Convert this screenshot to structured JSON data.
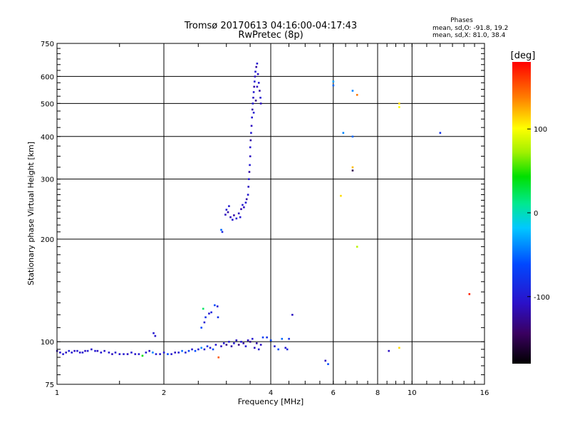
{
  "chart_data": {
    "type": "scatter",
    "title": "Tromsø 20170613 04:16:00-04:17:43",
    "subtitle": "RwPretec (8p)",
    "xlabel": "Frequency [MHz]",
    "ylabel": "Stationary phase Virtual Height [km]",
    "x_scale": "log",
    "y_scale": "log",
    "xlim": [
      1,
      16
    ],
    "ylim": [
      75,
      750
    ],
    "x_ticks": [
      1,
      2,
      4,
      6,
      8,
      10,
      16
    ],
    "x_tick_labels": [
      "1",
      "2",
      "4",
      "6",
      "8",
      "10",
      "16"
    ],
    "y_ticks": [
      75,
      100,
      200,
      300,
      400,
      500,
      600,
      750
    ],
    "y_tick_labels": [
      "75",
      "100",
      "200",
      "300",
      "400",
      "500",
      "600",
      "750"
    ],
    "grid": true,
    "phases_header": "Phases",
    "stats": [
      "mean, sd,O: -91.8, 19.2",
      "mean, sd,X: 81.0, 38.4"
    ],
    "colorbar": {
      "label": "[deg]",
      "range": [
        -180,
        180
      ],
      "tick_values": [
        100,
        0,
        -100
      ],
      "tick_labels": [
        "100",
        "0",
        "-100"
      ]
    },
    "series": [
      {
        "description_color": "phase",
        "points": [
          {
            "x": 1.0,
            "y": 94,
            "phase": -110
          },
          {
            "x": 1.02,
            "y": 93,
            "phase": -105
          },
          {
            "x": 1.04,
            "y": 92,
            "phase": -100
          },
          {
            "x": 1.06,
            "y": 93,
            "phase": -110
          },
          {
            "x": 1.08,
            "y": 94,
            "phase": -95
          },
          {
            "x": 1.1,
            "y": 93,
            "phase": -100
          },
          {
            "x": 1.12,
            "y": 94,
            "phase": -110
          },
          {
            "x": 1.14,
            "y": 94,
            "phase": -100
          },
          {
            "x": 1.16,
            "y": 93,
            "phase": -105
          },
          {
            "x": 1.18,
            "y": 93,
            "phase": -100
          },
          {
            "x": 1.2,
            "y": 94,
            "phase": -110
          },
          {
            "x": 1.22,
            "y": 94,
            "phase": -100
          },
          {
            "x": 1.25,
            "y": 95,
            "phase": -105
          },
          {
            "x": 1.28,
            "y": 94,
            "phase": -100
          },
          {
            "x": 1.3,
            "y": 94,
            "phase": -110
          },
          {
            "x": 1.33,
            "y": 93,
            "phase": -100
          },
          {
            "x": 1.36,
            "y": 94,
            "phase": -105
          },
          {
            "x": 1.4,
            "y": 93,
            "phase": -100
          },
          {
            "x": 1.43,
            "y": 92,
            "phase": -110
          },
          {
            "x": 1.46,
            "y": 93,
            "phase": -100
          },
          {
            "x": 1.5,
            "y": 92,
            "phase": -105
          },
          {
            "x": 1.54,
            "y": 92,
            "phase": -100
          },
          {
            "x": 1.58,
            "y": 92,
            "phase": -110
          },
          {
            "x": 1.62,
            "y": 93,
            "phase": -100
          },
          {
            "x": 1.66,
            "y": 92,
            "phase": -105
          },
          {
            "x": 1.7,
            "y": 92,
            "phase": -100
          },
          {
            "x": 1.74,
            "y": 91,
            "phase": 40
          },
          {
            "x": 1.78,
            "y": 93,
            "phase": -100
          },
          {
            "x": 1.82,
            "y": 94,
            "phase": -110
          },
          {
            "x": 1.86,
            "y": 93,
            "phase": -40
          },
          {
            "x": 1.9,
            "y": 92,
            "phase": -100
          },
          {
            "x": 1.95,
            "y": 92,
            "phase": -105
          },
          {
            "x": 2.0,
            "y": 93,
            "phase": -100
          },
          {
            "x": 2.05,
            "y": 92,
            "phase": -60
          },
          {
            "x": 2.1,
            "y": 92,
            "phase": -100
          },
          {
            "x": 2.15,
            "y": 93,
            "phase": -110
          },
          {
            "x": 2.2,
            "y": 93,
            "phase": -100
          },
          {
            "x": 2.25,
            "y": 94,
            "phase": -50
          },
          {
            "x": 2.3,
            "y": 93,
            "phase": -100
          },
          {
            "x": 2.35,
            "y": 94,
            "phase": -70
          },
          {
            "x": 2.4,
            "y": 95,
            "phase": -100
          },
          {
            "x": 2.45,
            "y": 94,
            "phase": -60
          },
          {
            "x": 2.5,
            "y": 95,
            "phase": -100
          },
          {
            "x": 2.55,
            "y": 96,
            "phase": -40
          },
          {
            "x": 2.6,
            "y": 95,
            "phase": -100
          },
          {
            "x": 2.65,
            "y": 97,
            "phase": -80
          },
          {
            "x": 2.7,
            "y": 96,
            "phase": -100
          },
          {
            "x": 2.75,
            "y": 95,
            "phase": -60
          },
          {
            "x": 2.8,
            "y": 98,
            "phase": -100
          },
          {
            "x": 2.85,
            "y": 90,
            "phase": 150
          },
          {
            "x": 2.9,
            "y": 97,
            "phase": -110
          },
          {
            "x": 2.95,
            "y": 99,
            "phase": -100
          },
          {
            "x": 3.0,
            "y": 98,
            "phase": -130
          },
          {
            "x": 3.05,
            "y": 100,
            "phase": -100
          },
          {
            "x": 3.1,
            "y": 97,
            "phase": -120
          },
          {
            "x": 3.15,
            "y": 99,
            "phase": -100
          },
          {
            "x": 3.2,
            "y": 101,
            "phase": -110
          },
          {
            "x": 3.25,
            "y": 98,
            "phase": -130
          },
          {
            "x": 3.3,
            "y": 100,
            "phase": -100
          },
          {
            "x": 3.35,
            "y": 99,
            "phase": -120
          },
          {
            "x": 3.4,
            "y": 97,
            "phase": -100
          },
          {
            "x": 3.45,
            "y": 101,
            "phase": -110
          },
          {
            "x": 3.5,
            "y": 100,
            "phase": -130
          },
          {
            "x": 3.55,
            "y": 102,
            "phase": -100
          },
          {
            "x": 3.6,
            "y": 96,
            "phase": -110
          },
          {
            "x": 3.65,
            "y": 99,
            "phase": -120
          },
          {
            "x": 3.7,
            "y": 95,
            "phase": -100
          },
          {
            "x": 3.75,
            "y": 98,
            "phase": -110
          },
          {
            "x": 3.8,
            "y": 103,
            "phase": -70
          },
          {
            "x": 3.9,
            "y": 103,
            "phase": -80
          },
          {
            "x": 4.0,
            "y": 101,
            "phase": -60
          },
          {
            "x": 4.1,
            "y": 97,
            "phase": -100
          },
          {
            "x": 4.2,
            "y": 95,
            "phase": -60
          },
          {
            "x": 4.3,
            "y": 102,
            "phase": -50
          },
          {
            "x": 4.4,
            "y": 96,
            "phase": -100
          },
          {
            "x": 4.5,
            "y": 102,
            "phase": -80
          },
          {
            "x": 4.45,
            "y": 95,
            "phase": -90
          },
          {
            "x": 1.87,
            "y": 106,
            "phase": -100
          },
          {
            "x": 1.89,
            "y": 104,
            "phase": -105
          },
          {
            "x": 2.55,
            "y": 110,
            "phase": -60
          },
          {
            "x": 2.6,
            "y": 114,
            "phase": -100
          },
          {
            "x": 2.62,
            "y": 118,
            "phase": -80
          },
          {
            "x": 2.68,
            "y": 121,
            "phase": -100
          },
          {
            "x": 2.72,
            "y": 122,
            "phase": -90
          },
          {
            "x": 2.78,
            "y": 128,
            "phase": -60
          },
          {
            "x": 2.83,
            "y": 127,
            "phase": -100
          },
          {
            "x": 2.84,
            "y": 118,
            "phase": -80
          },
          {
            "x": 2.58,
            "y": 125,
            "phase": 20
          },
          {
            "x": 4.6,
            "y": 120,
            "phase": -110
          },
          {
            "x": 5.8,
            "y": 86,
            "phase": -60
          },
          {
            "x": 5.7,
            "y": 88,
            "phase": -110
          },
          {
            "x": 8.6,
            "y": 94,
            "phase": -110
          },
          {
            "x": 9.2,
            "y": 96,
            "phase": 110
          },
          {
            "x": 14.5,
            "y": 138,
            "phase": 170
          },
          {
            "x": 7.0,
            "y": 190,
            "phase": 80
          },
          {
            "x": 2.9,
            "y": 213,
            "phase": -50
          },
          {
            "x": 2.92,
            "y": 210,
            "phase": -90
          },
          {
            "x": 2.98,
            "y": 236,
            "phase": -110
          },
          {
            "x": 3.0,
            "y": 244,
            "phase": -100
          },
          {
            "x": 3.03,
            "y": 240,
            "phase": -120
          },
          {
            "x": 3.05,
            "y": 250,
            "phase": -100
          },
          {
            "x": 3.08,
            "y": 232,
            "phase": -110
          },
          {
            "x": 3.12,
            "y": 228,
            "phase": -100
          },
          {
            "x": 3.15,
            "y": 235,
            "phase": -120
          },
          {
            "x": 3.2,
            "y": 230,
            "phase": -100
          },
          {
            "x": 3.25,
            "y": 238,
            "phase": -110
          },
          {
            "x": 3.28,
            "y": 232,
            "phase": -100
          },
          {
            "x": 3.3,
            "y": 245,
            "phase": -120
          },
          {
            "x": 3.33,
            "y": 252,
            "phase": -100
          },
          {
            "x": 3.36,
            "y": 248,
            "phase": -110
          },
          {
            "x": 3.4,
            "y": 256,
            "phase": -100
          },
          {
            "x": 3.42,
            "y": 262,
            "phase": -120
          },
          {
            "x": 3.45,
            "y": 270,
            "phase": -100
          },
          {
            "x": 3.46,
            "y": 285,
            "phase": -110
          },
          {
            "x": 3.47,
            "y": 300,
            "phase": -100
          },
          {
            "x": 3.48,
            "y": 315,
            "phase": -120
          },
          {
            "x": 3.49,
            "y": 330,
            "phase": -100
          },
          {
            "x": 3.5,
            "y": 350,
            "phase": -110
          },
          {
            "x": 3.5,
            "y": 372,
            "phase": -100
          },
          {
            "x": 3.51,
            "y": 390,
            "phase": -120
          },
          {
            "x": 3.52,
            "y": 410,
            "phase": -100
          },
          {
            "x": 3.53,
            "y": 430,
            "phase": -110
          },
          {
            "x": 3.54,
            "y": 455,
            "phase": -100
          },
          {
            "x": 3.55,
            "y": 480,
            "phase": -120
          },
          {
            "x": 3.56,
            "y": 500,
            "phase": -100
          },
          {
            "x": 3.57,
            "y": 520,
            "phase": -110
          },
          {
            "x": 3.58,
            "y": 540,
            "phase": -100
          },
          {
            "x": 3.59,
            "y": 560,
            "phase": -120
          },
          {
            "x": 3.6,
            "y": 580,
            "phase": -100
          },
          {
            "x": 3.61,
            "y": 600,
            "phase": -110
          },
          {
            "x": 3.62,
            "y": 620,
            "phase": -100
          },
          {
            "x": 3.64,
            "y": 640,
            "phase": -120
          },
          {
            "x": 3.66,
            "y": 655,
            "phase": -100
          },
          {
            "x": 3.68,
            "y": 610,
            "phase": -110
          },
          {
            "x": 3.7,
            "y": 575,
            "phase": -100
          },
          {
            "x": 3.72,
            "y": 545,
            "phase": -120
          },
          {
            "x": 3.74,
            "y": 520,
            "phase": -100
          },
          {
            "x": 3.75,
            "y": 500,
            "phase": -110
          },
          {
            "x": 3.63,
            "y": 510,
            "phase": -130
          },
          {
            "x": 3.58,
            "y": 470,
            "phase": -100
          },
          {
            "x": 3.66,
            "y": 560,
            "phase": -110
          },
          {
            "x": 6.0,
            "y": 580,
            "phase": -30
          },
          {
            "x": 6.0,
            "y": 565,
            "phase": -50
          },
          {
            "x": 6.4,
            "y": 410,
            "phase": -40
          },
          {
            "x": 6.8,
            "y": 400,
            "phase": -50
          },
          {
            "x": 6.8,
            "y": 545,
            "phase": -40
          },
          {
            "x": 7.0,
            "y": 530,
            "phase": 140
          },
          {
            "x": 6.8,
            "y": 325,
            "phase": 120
          },
          {
            "x": 6.8,
            "y": 318,
            "phase": -150
          },
          {
            "x": 6.3,
            "y": 268,
            "phase": 110
          },
          {
            "x": 9.2,
            "y": 500,
            "phase": 110
          },
          {
            "x": 9.2,
            "y": 488,
            "phase": 100
          },
          {
            "x": 12.0,
            "y": 410,
            "phase": -80
          }
        ]
      }
    ]
  }
}
